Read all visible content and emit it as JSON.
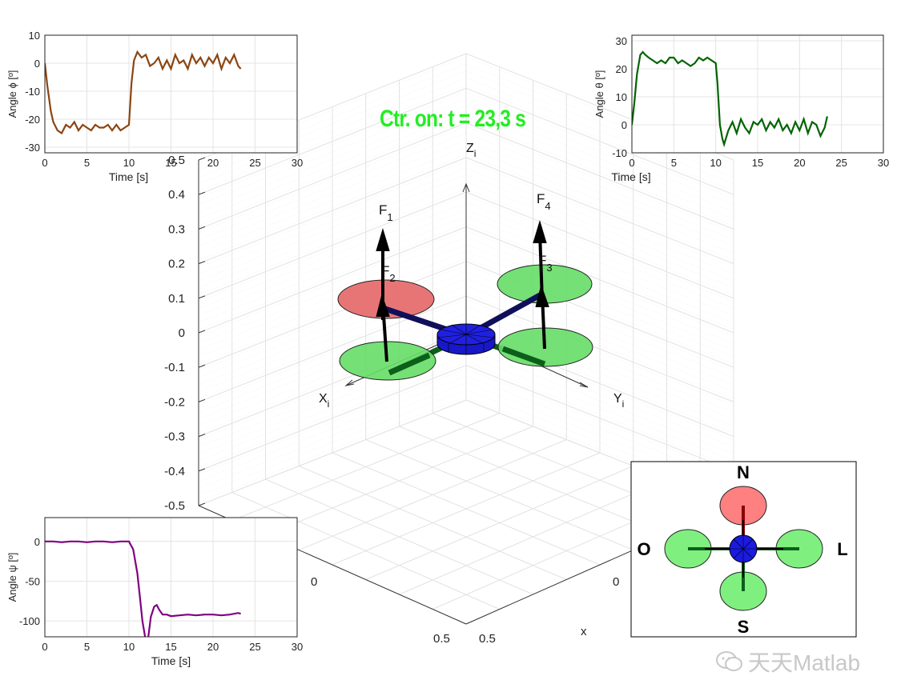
{
  "status_text": "Ctr. on: t = 23,3 s",
  "watermark": "天天Matlab",
  "colors": {
    "roll": "#8B4513",
    "pitch": "#006400",
    "yaw": "#800080",
    "body": "#0000cc",
    "rotor_active": "#e87575",
    "rotor_idle": "#66dd66",
    "status": "#22ee22"
  },
  "scene": {
    "zticks": [
      "0.5",
      "0.4",
      "0.3",
      "0.2",
      "0.1",
      "0",
      "-0.1",
      "-0.2",
      "-0.3",
      "-0.4",
      "-0.5"
    ],
    "bottom_ticks": {
      "left0": "0",
      "leftEnd": "0.5",
      "rightEnd": "0.5",
      "right0": "0",
      "xlabel": "x"
    },
    "axis_labels": {
      "x": "X",
      "x_sub": "i",
      "y": "Y",
      "y_sub": "i",
      "z": "Z",
      "z_sub": "i"
    },
    "forces": [
      {
        "label": "F",
        "sub": "1"
      },
      {
        "label": "F",
        "sub": "2"
      },
      {
        "label": "F",
        "sub": "3"
      },
      {
        "label": "F",
        "sub": "4"
      }
    ]
  },
  "compass": {
    "north": "N",
    "south": "S",
    "east": "L",
    "west": "O"
  },
  "chart_data": [
    {
      "type": "line",
      "name": "roll",
      "ylabel": "Angle ϕ [º]",
      "xlabel": "Time [s]",
      "xlim": [
        0,
        30
      ],
      "ylim": [
        -32,
        10
      ],
      "xticks": [
        0,
        5,
        10,
        15,
        20,
        25,
        30
      ],
      "yticks": [
        -30,
        -20,
        -10,
        0,
        10
      ],
      "grid": true,
      "x": [
        0,
        0.3,
        0.7,
        1.0,
        1.5,
        2.0,
        2.5,
        3.0,
        3.5,
        4.0,
        4.5,
        5.0,
        5.5,
        6.0,
        6.5,
        7.0,
        7.5,
        8.0,
        8.5,
        9.0,
        9.5,
        10.0,
        10.3,
        10.6,
        11.0,
        11.5,
        12.0,
        12.5,
        13.0,
        13.5,
        14.0,
        14.5,
        15.0,
        15.5,
        16.0,
        16.5,
        17.0,
        17.5,
        18.0,
        18.5,
        19.0,
        19.5,
        20.0,
        20.5,
        21.0,
        21.5,
        22.0,
        22.5,
        23.0,
        23.3
      ],
      "y": [
        0,
        -8,
        -17,
        -21,
        -24,
        -25,
        -22,
        -23,
        -21,
        -24,
        -22,
        -23,
        -24,
        -22,
        -23,
        -23,
        -22,
        -24,
        -22,
        -24,
        -23,
        -22,
        -7,
        1,
        4,
        2,
        3,
        -1,
        0,
        2,
        -2,
        1,
        -2,
        3,
        0,
        1,
        -2,
        3,
        0,
        2,
        -1,
        2,
        0,
        3,
        -2,
        2,
        0,
        3,
        -1,
        -2
      ]
    },
    {
      "type": "line",
      "name": "pitch",
      "ylabel": "Angle θ [º]",
      "xlabel": "Time [s]",
      "xlim": [
        0,
        30
      ],
      "ylim": [
        -10,
        32
      ],
      "xticks": [
        0,
        5,
        10,
        15,
        20,
        25,
        30
      ],
      "yticks": [
        -10,
        0,
        10,
        20,
        30
      ],
      "grid": true,
      "x": [
        0,
        0.3,
        0.6,
        1.0,
        1.3,
        1.6,
        2.0,
        2.5,
        3.0,
        3.5,
        4.0,
        4.5,
        5.0,
        5.5,
        6.0,
        6.5,
        7.0,
        7.5,
        8.0,
        8.5,
        9.0,
        9.5,
        10.0,
        10.2,
        10.5,
        10.8,
        11.0,
        11.5,
        12.0,
        12.5,
        13.0,
        13.5,
        14.0,
        14.5,
        15.0,
        15.5,
        16.0,
        16.5,
        17.0,
        17.5,
        18.0,
        18.5,
        19.0,
        19.5,
        20.0,
        20.5,
        21.0,
        21.5,
        22.0,
        22.5,
        23.0,
        23.3
      ],
      "y": [
        0,
        8,
        18,
        25,
        26,
        25,
        24,
        23,
        22,
        23,
        22,
        24,
        24,
        22,
        23,
        22,
        21,
        22,
        24,
        23,
        24,
        23,
        22,
        15,
        0,
        -5,
        -7,
        -2,
        1,
        -3,
        2,
        -1,
        -3,
        1,
        0,
        2,
        -2,
        1,
        -1,
        2,
        -2,
        0,
        -3,
        1,
        -2,
        2,
        -3,
        1,
        0,
        -4,
        -1,
        3
      ]
    },
    {
      "type": "line",
      "name": "yaw",
      "ylabel": "Angle ψ [º]",
      "xlabel": "Time [s]",
      "xlim": [
        0,
        30
      ],
      "ylim": [
        -120,
        30
      ],
      "xticks": [
        0,
        5,
        10,
        15,
        20,
        25,
        30
      ],
      "yticks": [
        -100,
        -50,
        0
      ],
      "grid": true,
      "x": [
        0,
        1,
        2,
        3,
        4,
        5,
        6,
        7,
        8,
        9,
        10,
        10.5,
        11.0,
        11.3,
        11.6,
        12.0,
        12.3,
        12.6,
        13.0,
        13.3,
        13.6,
        14.0,
        14.5,
        15.0,
        16.0,
        17.0,
        18.0,
        19.0,
        20.0,
        21.0,
        22.0,
        23.0,
        23.3
      ],
      "y": [
        0,
        0,
        -1,
        0,
        0,
        -1,
        0,
        0,
        -1,
        0,
        0,
        -10,
        -40,
        -70,
        -100,
        -125,
        -120,
        -95,
        -82,
        -80,
        -86,
        -92,
        -92,
        -94,
        -93,
        -92,
        -93,
        -92,
        -92,
        -93,
        -92,
        -90,
        -91
      ]
    }
  ]
}
